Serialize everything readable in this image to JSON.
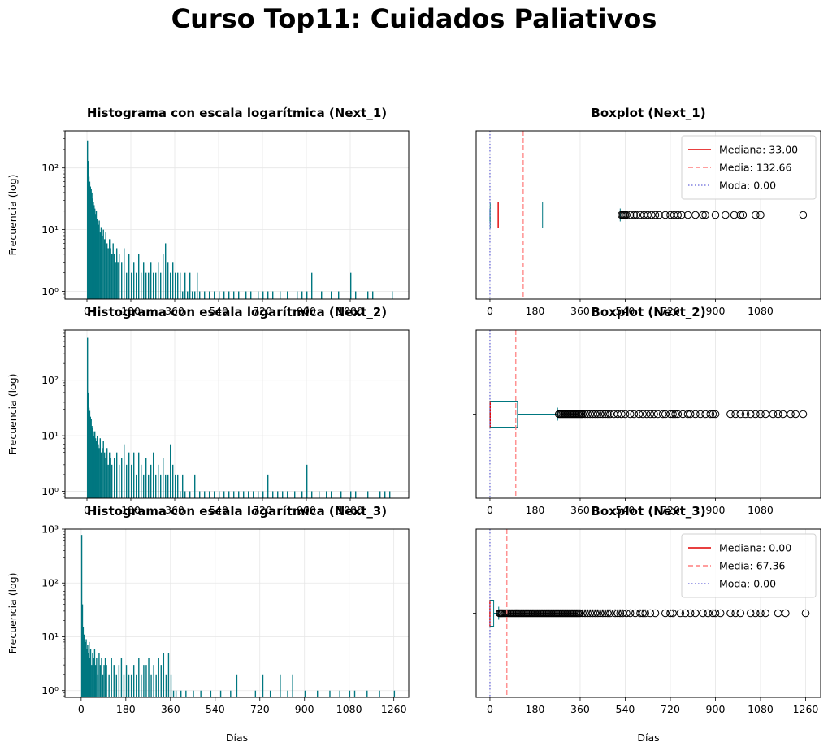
{
  "figure": {
    "title": "Curso Top11: Cuidados Paliativos"
  },
  "colors": {
    "bar": "#007780",
    "median": "#e00000",
    "mean": "#ff7f7f",
    "mode": "#8080e0",
    "grid": "#e6e6e6"
  },
  "chart_data": [
    {
      "type": "histogram",
      "title": "Histograma con escala logarítmica (Next_1)",
      "xlabel": "",
      "ylabel": "Frecuencia (log)",
      "yscale": "log",
      "grid": true,
      "xlim": [
        -90,
        1320
      ],
      "ylim": [
        0.75,
        400
      ],
      "xticks": [
        0,
        180,
        360,
        540,
        720,
        900,
        1080
      ],
      "yticks": [
        {
          "v": 1,
          "label": "10⁰"
        },
        {
          "v": 10,
          "label": "10¹"
        },
        {
          "v": 100,
          "label": "10²"
        }
      ],
      "bars": [
        [
          0,
          280
        ],
        [
          3,
          130
        ],
        [
          6,
          72
        ],
        [
          9,
          60
        ],
        [
          12,
          50
        ],
        [
          15,
          45
        ],
        [
          18,
          40
        ],
        [
          21,
          32
        ],
        [
          24,
          28
        ],
        [
          27,
          25
        ],
        [
          30,
          22
        ],
        [
          33,
          18
        ],
        [
          36,
          20
        ],
        [
          40,
          15
        ],
        [
          44,
          12
        ],
        [
          48,
          14
        ],
        [
          52,
          9
        ],
        [
          56,
          11
        ],
        [
          60,
          8
        ],
        [
          65,
          10
        ],
        [
          70,
          7
        ],
        [
          75,
          9
        ],
        [
          80,
          6
        ],
        [
          85,
          5
        ],
        [
          90,
          7
        ],
        [
          95,
          5
        ],
        [
          100,
          4
        ],
        [
          105,
          6
        ],
        [
          110,
          4
        ],
        [
          115,
          3
        ],
        [
          120,
          5
        ],
        [
          125,
          3
        ],
        [
          130,
          4
        ],
        [
          140,
          3
        ],
        [
          150,
          5
        ],
        [
          160,
          2
        ],
        [
          170,
          4
        ],
        [
          180,
          2
        ],
        [
          190,
          3
        ],
        [
          200,
          2
        ],
        [
          210,
          4
        ],
        [
          220,
          2
        ],
        [
          230,
          3
        ],
        [
          240,
          2
        ],
        [
          250,
          2
        ],
        [
          260,
          3
        ],
        [
          270,
          2
        ],
        [
          280,
          2
        ],
        [
          290,
          3
        ],
        [
          300,
          2
        ],
        [
          310,
          4
        ],
        [
          320,
          6
        ],
        [
          330,
          3
        ],
        [
          340,
          2
        ],
        [
          350,
          3
        ],
        [
          360,
          2
        ],
        [
          370,
          2
        ],
        [
          380,
          2
        ],
        [
          390,
          1
        ],
        [
          400,
          2
        ],
        [
          410,
          1
        ],
        [
          420,
          2
        ],
        [
          430,
          1
        ],
        [
          440,
          1
        ],
        [
          450,
          2
        ],
        [
          460,
          1
        ],
        [
          480,
          1
        ],
        [
          500,
          1
        ],
        [
          520,
          1
        ],
        [
          540,
          1
        ],
        [
          560,
          1
        ],
        [
          580,
          1
        ],
        [
          600,
          1
        ],
        [
          620,
          1
        ],
        [
          650,
          1
        ],
        [
          670,
          1
        ],
        [
          700,
          1
        ],
        [
          720,
          1
        ],
        [
          740,
          1
        ],
        [
          760,
          1
        ],
        [
          790,
          1
        ],
        [
          820,
          1
        ],
        [
          860,
          1
        ],
        [
          880,
          1
        ],
        [
          900,
          1
        ],
        [
          920,
          2
        ],
        [
          960,
          1
        ],
        [
          1000,
          1
        ],
        [
          1030,
          1
        ],
        [
          1080,
          2
        ],
        [
          1100,
          1
        ],
        [
          1150,
          1
        ],
        [
          1170,
          1
        ],
        [
          1250,
          1
        ]
      ]
    },
    {
      "type": "boxplot",
      "title": "Boxplot (Next_1)",
      "xlabel": "",
      "grid": true,
      "xlim": [
        -55,
        1320
      ],
      "xticks": [
        0,
        180,
        360,
        540,
        720,
        900,
        1080
      ],
      "box": {
        "q1": 1,
        "median": 33,
        "q3": 210,
        "whisker_low": 0,
        "whisker_high": 520
      },
      "mean": 132.66,
      "mode": 0.0,
      "outliers": [
        525,
        530,
        535,
        540,
        545,
        560,
        575,
        585,
        600,
        615,
        630,
        645,
        660,
        675,
        700,
        720,
        735,
        750,
        765,
        790,
        820,
        850,
        860,
        900,
        940,
        975,
        1000,
        1010,
        1060,
        1080,
        1250
      ],
      "legend": {
        "position": "upper right",
        "entries": [
          "Mediana: 33.00",
          "Media: 132.66",
          "Moda: 0.00"
        ]
      }
    },
    {
      "type": "histogram",
      "title": "Histograma con escala logarítmica (Next_2)",
      "xlabel": "",
      "ylabel": "Frecuencia (log)",
      "yscale": "log",
      "grid": true,
      "xlim": [
        -90,
        1320
      ],
      "ylim": [
        0.75,
        800
      ],
      "xticks": [
        0,
        180,
        360,
        540,
        720,
        900,
        1080
      ],
      "yticks": [
        {
          "v": 1,
          "label": "10⁰"
        },
        {
          "v": 10,
          "label": "10¹"
        },
        {
          "v": 100,
          "label": "10²"
        }
      ],
      "bars": [
        [
          0,
          580
        ],
        [
          3,
          60
        ],
        [
          6,
          32
        ],
        [
          9,
          28
        ],
        [
          12,
          22
        ],
        [
          15,
          20
        ],
        [
          18,
          15
        ],
        [
          21,
          14
        ],
        [
          24,
          12
        ],
        [
          27,
          10
        ],
        [
          30,
          12
        ],
        [
          33,
          9
        ],
        [
          36,
          8
        ],
        [
          40,
          10
        ],
        [
          44,
          7
        ],
        [
          48,
          6
        ],
        [
          52,
          9
        ],
        [
          56,
          5
        ],
        [
          60,
          6
        ],
        [
          65,
          8
        ],
        [
          70,
          5
        ],
        [
          75,
          4
        ],
        [
          80,
          6
        ],
        [
          85,
          3
        ],
        [
          90,
          5
        ],
        [
          95,
          4
        ],
        [
          100,
          3
        ],
        [
          110,
          4
        ],
        [
          120,
          5
        ],
        [
          130,
          3
        ],
        [
          140,
          4
        ],
        [
          150,
          7
        ],
        [
          160,
          3
        ],
        [
          170,
          5
        ],
        [
          180,
          3
        ],
        [
          190,
          5
        ],
        [
          200,
          2
        ],
        [
          210,
          5
        ],
        [
          220,
          3
        ],
        [
          230,
          2
        ],
        [
          240,
          4
        ],
        [
          250,
          2
        ],
        [
          260,
          3
        ],
        [
          270,
          5
        ],
        [
          280,
          2
        ],
        [
          290,
          3
        ],
        [
          300,
          2
        ],
        [
          310,
          4
        ],
        [
          320,
          2
        ],
        [
          330,
          2
        ],
        [
          340,
          7
        ],
        [
          350,
          3
        ],
        [
          360,
          2
        ],
        [
          370,
          2
        ],
        [
          380,
          1
        ],
        [
          390,
          2
        ],
        [
          400,
          1
        ],
        [
          420,
          1
        ],
        [
          440,
          2
        ],
        [
          460,
          1
        ],
        [
          480,
          1
        ],
        [
          500,
          1
        ],
        [
          520,
          1
        ],
        [
          540,
          1
        ],
        [
          560,
          1
        ],
        [
          580,
          1
        ],
        [
          600,
          1
        ],
        [
          620,
          1
        ],
        [
          640,
          1
        ],
        [
          660,
          1
        ],
        [
          680,
          1
        ],
        [
          700,
          1
        ],
        [
          720,
          1
        ],
        [
          740,
          2
        ],
        [
          760,
          1
        ],
        [
          780,
          1
        ],
        [
          800,
          1
        ],
        [
          820,
          1
        ],
        [
          850,
          1
        ],
        [
          880,
          1
        ],
        [
          900,
          3
        ],
        [
          920,
          1
        ],
        [
          950,
          1
        ],
        [
          980,
          1
        ],
        [
          1000,
          1
        ],
        [
          1040,
          1
        ],
        [
          1080,
          1
        ],
        [
          1100,
          1
        ],
        [
          1150,
          1
        ],
        [
          1200,
          1
        ],
        [
          1220,
          1
        ],
        [
          1240,
          1
        ]
      ]
    },
    {
      "type": "boxplot",
      "title": "Boxplot (Next_2)",
      "xlabel": "",
      "grid": true,
      "xlim": [
        -55,
        1320
      ],
      "xticks": [
        0,
        180,
        360,
        540,
        720,
        900,
        1080
      ],
      "box": {
        "q1": 0,
        "median": 1,
        "q3": 110,
        "whisker_low": 0,
        "whisker_high": 270
      },
      "mean": 103.04,
      "mode": 0.0,
      "outliers": [
        275,
        280,
        285,
        290,
        295,
        300,
        305,
        310,
        315,
        320,
        325,
        330,
        335,
        340,
        345,
        350,
        355,
        360,
        365,
        370,
        380,
        390,
        400,
        410,
        420,
        430,
        440,
        450,
        460,
        470,
        480,
        495,
        510,
        525,
        540,
        560,
        575,
        595,
        610,
        625,
        640,
        655,
        670,
        690,
        700,
        720,
        730,
        740,
        750,
        770,
        790,
        800,
        820,
        840,
        860,
        880,
        890,
        900,
        960,
        980,
        1000,
        1020,
        1040,
        1060,
        1080,
        1100,
        1130,
        1150,
        1170,
        1200,
        1220,
        1250
      ]
    },
    {
      "type": "histogram",
      "title": "Histograma con escala logarítmica (Next_3)",
      "xlabel": "Días",
      "ylabel": "Frecuencia (log)",
      "yscale": "log",
      "grid": true,
      "xlim": [
        -65,
        1320
      ],
      "ylim": [
        0.75,
        1000
      ],
      "xticks": [
        0,
        180,
        360,
        540,
        720,
        900,
        1080,
        1260
      ],
      "yticks": [
        {
          "v": 1,
          "label": "10⁰"
        },
        {
          "v": 10,
          "label": "10¹"
        },
        {
          "v": 100,
          "label": "10²"
        },
        {
          "v": 1000,
          "label": "10³"
        }
      ],
      "bars": [
        [
          0,
          780
        ],
        [
          3,
          40
        ],
        [
          6,
          15
        ],
        [
          9,
          11
        ],
        [
          12,
          10
        ],
        [
          15,
          8
        ],
        [
          18,
          9
        ],
        [
          21,
          6
        ],
        [
          24,
          7
        ],
        [
          27,
          5
        ],
        [
          30,
          8
        ],
        [
          33,
          4
        ],
        [
          36,
          6
        ],
        [
          40,
          3
        ],
        [
          44,
          5
        ],
        [
          48,
          4
        ],
        [
          52,
          6
        ],
        [
          56,
          3
        ],
        [
          60,
          4
        ],
        [
          65,
          2
        ],
        [
          70,
          5
        ],
        [
          75,
          3
        ],
        [
          80,
          4
        ],
        [
          85,
          2
        ],
        [
          90,
          3
        ],
        [
          95,
          4
        ],
        [
          100,
          3
        ],
        [
          110,
          2
        ],
        [
          120,
          4
        ],
        [
          130,
          3
        ],
        [
          140,
          2
        ],
        [
          150,
          3
        ],
        [
          160,
          4
        ],
        [
          170,
          2
        ],
        [
          180,
          3
        ],
        [
          190,
          2
        ],
        [
          200,
          2
        ],
        [
          210,
          3
        ],
        [
          220,
          2
        ],
        [
          230,
          4
        ],
        [
          240,
          2
        ],
        [
          250,
          3
        ],
        [
          260,
          3
        ],
        [
          270,
          4
        ],
        [
          280,
          2
        ],
        [
          290,
          3
        ],
        [
          300,
          2
        ],
        [
          310,
          4
        ],
        [
          320,
          3
        ],
        [
          330,
          5
        ],
        [
          340,
          2
        ],
        [
          350,
          5
        ],
        [
          360,
          2
        ],
        [
          370,
          1
        ],
        [
          380,
          1
        ],
        [
          400,
          1
        ],
        [
          420,
          1
        ],
        [
          450,
          1
        ],
        [
          480,
          1
        ],
        [
          520,
          1
        ],
        [
          560,
          1
        ],
        [
          600,
          1
        ],
        [
          625,
          2
        ],
        [
          700,
          1
        ],
        [
          730,
          2
        ],
        [
          760,
          1
        ],
        [
          800,
          2
        ],
        [
          830,
          1
        ],
        [
          850,
          2
        ],
        [
          900,
          1
        ],
        [
          950,
          1
        ],
        [
          1000,
          1
        ],
        [
          1040,
          1
        ],
        [
          1080,
          1
        ],
        [
          1100,
          1
        ],
        [
          1150,
          1
        ],
        [
          1200,
          1
        ],
        [
          1260,
          1
        ]
      ]
    },
    {
      "type": "boxplot",
      "title": "Boxplot (Next_3)",
      "xlabel": "Días",
      "grid": true,
      "xlim": [
        -55,
        1320
      ],
      "xticks": [
        0,
        180,
        360,
        540,
        720,
        900,
        1080,
        1260
      ],
      "box": {
        "q1": 0,
        "median": 0,
        "q3": 15,
        "whisker_low": 0,
        "whisker_high": 35
      },
      "mean": 67.36,
      "mode": 0.0,
      "outliers": [
        38,
        42,
        46,
        50,
        55,
        60,
        65,
        70,
        75,
        80,
        85,
        90,
        95,
        100,
        105,
        110,
        115,
        120,
        125,
        130,
        135,
        140,
        145,
        150,
        155,
        160,
        165,
        170,
        175,
        180,
        185,
        190,
        195,
        200,
        205,
        210,
        215,
        220,
        225,
        230,
        235,
        240,
        245,
        250,
        255,
        260,
        265,
        270,
        275,
        280,
        285,
        290,
        295,
        300,
        305,
        310,
        315,
        320,
        325,
        330,
        335,
        340,
        345,
        350,
        355,
        360,
        370,
        380,
        390,
        400,
        410,
        420,
        430,
        440,
        450,
        460,
        470,
        480,
        500,
        510,
        520,
        530,
        545,
        560,
        580,
        600,
        610,
        620,
        640,
        660,
        700,
        720,
        730,
        760,
        780,
        800,
        820,
        850,
        870,
        890,
        900,
        920,
        960,
        980,
        1000,
        1040,
        1060,
        1080,
        1100,
        1150,
        1180,
        1260
      ],
      "legend": {
        "position": "upper right",
        "entries": [
          "Mediana: 0.00",
          "Media: 67.36",
          "Moda: 0.00"
        ]
      }
    }
  ]
}
